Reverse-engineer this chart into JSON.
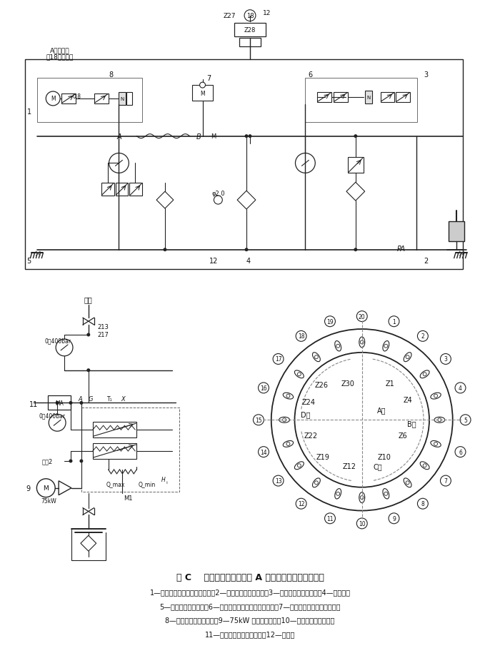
{
  "title": "图 C    盾构机推进液压系统 A 组原理图及液压缸布置图",
  "caption_lines": [
    "1—拼装模式液压缸流量控制阀；2—液压缸组流量控制阀；3—液压缸组压力控制阀；4—过滤器；",
    "5—液压缸推进控制阀；6—拼装模式液压缸组流量控制阀；7—拼装模式液压缸预卸压阀；",
    "8—液压缸组压力传感器；9—75kW 电机及推进泵；10—液压泵压力控制阀；",
    "11—推进液压泵压力传感器；12—单向阀"
  ],
  "bg_color": "#ffffff",
  "text_color": "#111111",
  "line_color": "#222222"
}
